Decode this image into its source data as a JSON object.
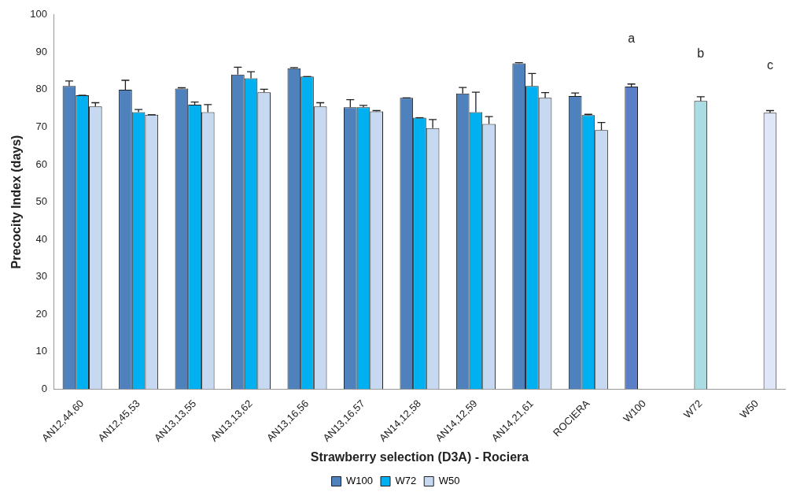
{
  "chart_data": {
    "type": "bar",
    "xlabel": "Strawberry selection (D3A) - Rociera",
    "ylabel": "Precocity Index (days)",
    "categories": [
      "AN12,44,60",
      "AN12,45,53",
      "AN13,13,55",
      "AN13,13,62",
      "AN13,16,56",
      "AN13,16,57",
      "AN14,12,58",
      "AN14,12,59",
      "AN14,21,61",
      "ROCIERA",
      "W100",
      "W72",
      "W50"
    ],
    "series": [
      {
        "name": "W100",
        "color": "#4f81bd",
        "colors": [
          "#4f81bd",
          "#4f81bd",
          "#4f81bd",
          "#4f81bd",
          "#4f81bd",
          "#4f81bd",
          "#4f81bd",
          "#4f81bd",
          "#4f81bd",
          "#4f81bd",
          "#5a7fc8",
          "#4f81bd",
          "#4f81bd"
        ],
        "values": [
          81,
          80,
          80.3,
          84,
          85.7,
          75.3,
          77.8,
          79,
          87,
          78.3,
          80.8,
          null,
          null
        ],
        "errors": [
          1.3,
          2.5,
          0.2,
          2,
          0.2,
          2,
          0,
          1.6,
          0.2,
          0.8,
          0.7,
          null,
          null
        ]
      },
      {
        "name": "W72",
        "color": "#00b0f0",
        "colors": [
          "#00b0f0",
          "#00b0f0",
          "#00b0f0",
          "#00b0f0",
          "#00b0f0",
          "#00b0f0",
          "#00b0f0",
          "#00b0f0",
          "#00b0f0",
          "#00b0f0",
          "#00b0f0",
          "#a9dde3",
          "#00b0f0"
        ],
        "values": [
          78.5,
          74,
          76,
          83,
          83.5,
          75.3,
          72.5,
          74,
          81,
          73.2,
          null,
          77,
          null
        ],
        "errors": [
          0,
          0.7,
          0.7,
          1.8,
          0,
          0.5,
          0,
          5.3,
          3.3,
          0.2,
          null,
          1.1,
          null
        ]
      },
      {
        "name": "W50",
        "color": "#c6d9f1",
        "colors": [
          "#c6d9f1",
          "#c6d9f1",
          "#c6d9f1",
          "#c6d9f1",
          "#c6d9f1",
          "#c6d9f1",
          "#c6d9f1",
          "#c6d9f1",
          "#c6d9f1",
          "#c6d9f1",
          "#c6d9f1",
          "#c6d9f1",
          "#dfe6f8"
        ],
        "values": [
          75.5,
          73.3,
          74,
          79.3,
          75.5,
          74.2,
          69.7,
          70.8,
          77.8,
          69.2,
          null,
          null,
          73.8
        ],
        "errors": [
          1,
          0,
          2,
          0.8,
          1,
          0.2,
          2.3,
          2,
          1.4,
          2,
          null,
          null,
          0.6
        ]
      }
    ],
    "ylim": [
      0,
      100
    ],
    "yticks": [
      0,
      10,
      20,
      30,
      40,
      50,
      60,
      70,
      80,
      90,
      100
    ],
    "grid": false,
    "legend": "bottom",
    "annotations": [
      "a",
      "b",
      "c"
    ]
  }
}
